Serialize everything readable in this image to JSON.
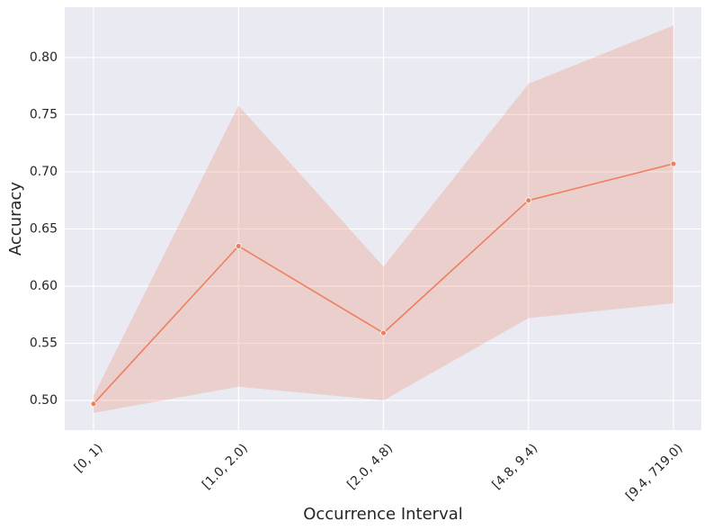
{
  "chart_data": {
    "type": "line",
    "x_label": "Occurrence Interval",
    "y_label": "Accuracy",
    "categories": [
      "[0, 1)",
      "[1.0, 2.0)",
      "[2.0, 4.8)",
      "[4.8, 9.4)",
      "[9.4, 719.0)"
    ],
    "values": [
      0.497,
      0.635,
      0.559,
      0.675,
      0.707
    ],
    "ci_lower": [
      0.489,
      0.512,
      0.5,
      0.572,
      0.585
    ],
    "ci_upper": [
      0.504,
      0.758,
      0.617,
      0.777,
      0.828
    ],
    "color": "#ee7f5e",
    "ylim": [
      0.474,
      0.844
    ],
    "yticks": [
      {
        "value": 0.5,
        "label": "0.50"
      },
      {
        "value": 0.55,
        "label": "0.55"
      },
      {
        "value": 0.6,
        "label": "0.60"
      },
      {
        "value": 0.65,
        "label": "0.65"
      },
      {
        "value": 0.7,
        "label": "0.70"
      },
      {
        "value": 0.75,
        "label": "0.75"
      },
      {
        "value": 0.8,
        "label": "0.80"
      }
    ],
    "grid": true
  }
}
